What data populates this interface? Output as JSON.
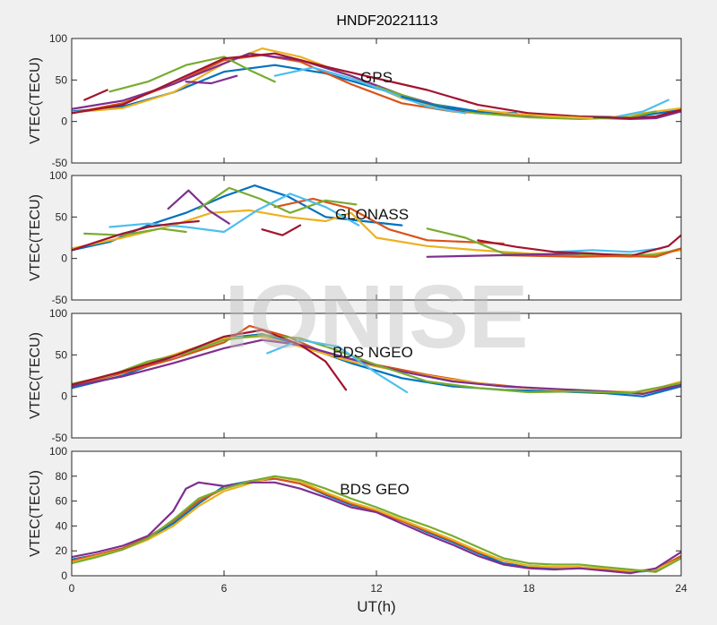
{
  "figure": {
    "title": "HNDF20221113",
    "watermark": "IONISE",
    "xlabel": "UT(h)",
    "background": "#f0f0f0",
    "axes_background": "#ffffff"
  },
  "palette": [
    "#0072BD",
    "#D95319",
    "#EDB120",
    "#7E2F8E",
    "#77AC30",
    "#4DBEEE",
    "#A2142F"
  ],
  "chart_data": [
    {
      "type": "line",
      "title": "GPS",
      "xlabel": "",
      "ylabel": "VTEC(TECU)",
      "xlim": [
        0,
        24
      ],
      "ylim": [
        -50,
        100
      ],
      "xticks": [
        0,
        6,
        12,
        18,
        24
      ],
      "yticks": [
        -50,
        0,
        50,
        100
      ],
      "grid": false,
      "series": [
        {
          "color": "#0072BD",
          "x": [
            0,
            2,
            4,
            6,
            8,
            10,
            12,
            14,
            16,
            18,
            20,
            22,
            24
          ],
          "y": [
            12,
            18,
            35,
            60,
            68,
            58,
            40,
            22,
            12,
            8,
            6,
            5,
            14
          ]
        },
        {
          "color": "#D95319",
          "x": [
            0,
            2,
            4,
            6,
            7.5,
            9,
            11,
            13,
            15,
            17,
            19,
            21,
            23,
            24
          ],
          "y": [
            10,
            22,
            45,
            74,
            80,
            72,
            45,
            22,
            12,
            8,
            5,
            4,
            5,
            14
          ]
        },
        {
          "color": "#EDB120",
          "x": [
            0,
            2,
            4,
            6,
            7.5,
            9,
            11,
            13,
            15,
            18,
            21,
            24
          ],
          "y": [
            11,
            16,
            35,
            70,
            88,
            78,
            55,
            28,
            12,
            6,
            4,
            16
          ]
        },
        {
          "color": "#7E2F8E",
          "x": [
            0,
            2,
            4,
            6,
            7,
            9,
            11,
            13,
            15,
            17,
            20,
            22,
            23,
            24
          ],
          "y": [
            15,
            25,
            45,
            70,
            82,
            74,
            55,
            32,
            14,
            8,
            5,
            3,
            4,
            12
          ]
        },
        {
          "color": "#77AC30",
          "x": [
            1.5,
            3,
            4.5,
            6,
            7,
            8
          ],
          "y": [
            36,
            48,
            68,
            78,
            62,
            48
          ]
        },
        {
          "color": "#77AC30",
          "x": [
            12,
            14,
            16,
            18,
            20,
            22,
            23
          ],
          "y": [
            42,
            22,
            10,
            5,
            3,
            5,
            12
          ]
        },
        {
          "color": "#4DBEEE",
          "x": [
            8,
            9.5,
            11,
            12.5,
            14,
            15.5
          ],
          "y": [
            55,
            65,
            52,
            35,
            18,
            10
          ]
        },
        {
          "color": "#4DBEEE",
          "x": [
            21.5,
            22.5,
            23.5
          ],
          "y": [
            6,
            12,
            26
          ]
        },
        {
          "color": "#A2142F",
          "x": [
            0,
            2,
            4,
            6,
            8,
            10,
            12,
            14,
            16,
            18,
            20,
            22,
            23,
            24
          ],
          "y": [
            10,
            20,
            48,
            76,
            82,
            66,
            52,
            38,
            20,
            10,
            6,
            4,
            6,
            14
          ]
        },
        {
          "color": "#A2142F",
          "x": [
            0.5,
            1.4
          ],
          "y": [
            26,
            38
          ]
        },
        {
          "color": "#0072BD",
          "x": [
            13,
            14.5,
            16,
            17.5
          ],
          "y": [
            30,
            18,
            12,
            10
          ]
        },
        {
          "color": "#7E2F8E",
          "x": [
            4.5,
            5.5,
            6.5
          ],
          "y": [
            48,
            46,
            55
          ]
        },
        {
          "color": "#EDB120",
          "x": [
            16,
            17.5,
            19,
            20.5
          ],
          "y": [
            14,
            9,
            6,
            4
          ]
        }
      ]
    },
    {
      "type": "line",
      "title": "GLONASS",
      "xlabel": "",
      "ylabel": "VTEC(TECU)",
      "xlim": [
        0,
        24
      ],
      "ylim": [
        -50,
        100
      ],
      "xticks": [
        0,
        6,
        12,
        18,
        24
      ],
      "yticks": [
        -50,
        0,
        50,
        100
      ],
      "grid": false,
      "series": [
        {
          "color": "#0072BD",
          "x": [
            0,
            1.5,
            3,
            4.5,
            6,
            7.2,
            8.5,
            10,
            11.5,
            13
          ],
          "y": [
            10,
            20,
            40,
            55,
            75,
            88,
            75,
            50,
            45,
            40
          ]
        },
        {
          "color": "#D95319",
          "x": [
            8,
            9.5,
            11,
            12.5,
            14,
            15.5,
            17
          ],
          "y": [
            62,
            72,
            60,
            35,
            22,
            20,
            18
          ]
        },
        {
          "color": "#EDB120",
          "x": [
            0,
            2,
            4,
            5.5,
            7,
            8.5,
            10,
            11,
            12,
            14,
            16,
            18,
            20,
            22,
            24
          ],
          "y": [
            12,
            25,
            40,
            55,
            58,
            50,
            45,
            55,
            25,
            15,
            10,
            6,
            4,
            2,
            10
          ]
        },
        {
          "color": "#7E2F8E",
          "x": [
            3.8,
            4.6,
            5.4,
            6.2
          ],
          "y": [
            60,
            82,
            58,
            42
          ]
        },
        {
          "color": "#77AC30",
          "x": [
            5,
            6.2,
            7.4,
            8.6,
            10,
            11.2
          ],
          "y": [
            60,
            85,
            72,
            55,
            70,
            65
          ]
        },
        {
          "color": "#77AC30",
          "x": [
            0.5,
            2,
            3.5,
            4.5
          ],
          "y": [
            30,
            28,
            36,
            32
          ]
        },
        {
          "color": "#77AC30",
          "x": [
            14,
            15.5,
            17,
            19,
            21,
            23,
            24
          ],
          "y": [
            36,
            25,
            6,
            4,
            5,
            4,
            12
          ]
        },
        {
          "color": "#4DBEEE",
          "x": [
            1.5,
            3,
            4.5,
            6,
            7.3,
            8.6,
            10,
            11.3
          ],
          "y": [
            38,
            42,
            38,
            32,
            58,
            78,
            62,
            40
          ]
        },
        {
          "color": "#4DBEEE",
          "x": [
            19,
            20.5,
            22,
            23.2
          ],
          "y": [
            8,
            10,
            8,
            12
          ]
        },
        {
          "color": "#A2142F",
          "x": [
            0,
            1,
            2,
            3,
            4,
            5
          ],
          "y": [
            10,
            20,
            30,
            38,
            42,
            45
          ]
        },
        {
          "color": "#A2142F",
          "x": [
            7.5,
            8.3,
            9
          ],
          "y": [
            35,
            28,
            40
          ]
        },
        {
          "color": "#A2142F",
          "x": [
            16,
            17.5,
            19,
            20.5,
            22,
            23.5,
            24
          ],
          "y": [
            22,
            14,
            8,
            6,
            3,
            15,
            28
          ]
        },
        {
          "color": "#D95319",
          "x": [
            17,
            18.5,
            20,
            21.5,
            23,
            24
          ],
          "y": [
            4,
            3,
            2,
            3,
            2,
            12
          ]
        },
        {
          "color": "#7E2F8E",
          "x": [
            14,
            15.5,
            17,
            18.5,
            20
          ],
          "y": [
            2,
            3,
            4,
            5,
            6
          ]
        }
      ]
    },
    {
      "type": "line",
      "title": "BDS NGEO",
      "xlabel": "",
      "ylabel": "VTEC(TECU)",
      "xlim": [
        0,
        24
      ],
      "ylim": [
        -50,
        100
      ],
      "xticks": [
        0,
        6,
        12,
        18,
        24
      ],
      "yticks": [
        -50,
        0,
        50,
        100
      ],
      "grid": false,
      "series": [
        {
          "color": "#0072BD",
          "x": [
            0,
            2,
            4,
            6,
            7.5,
            9,
            11,
            13,
            15,
            17,
            19,
            21,
            22.5,
            24
          ],
          "y": [
            10,
            25,
            48,
            70,
            75,
            62,
            40,
            22,
            12,
            8,
            6,
            4,
            0,
            12
          ]
        },
        {
          "color": "#D95319",
          "x": [
            0,
            2,
            4,
            6,
            7,
            8.5,
            10,
            12,
            14,
            16,
            18,
            20,
            22,
            24
          ],
          "y": [
            12,
            28,
            45,
            65,
            85,
            72,
            52,
            38,
            26,
            16,
            10,
            7,
            4,
            14
          ]
        },
        {
          "color": "#EDB120",
          "x": [
            0,
            2,
            4,
            6,
            7.5,
            9,
            11,
            13,
            15,
            17,
            19,
            21,
            22.5,
            24
          ],
          "y": [
            14,
            30,
            50,
            70,
            72,
            60,
            42,
            30,
            20,
            12,
            8,
            6,
            5,
            18
          ]
        },
        {
          "color": "#7E2F8E",
          "x": [
            0,
            2,
            4,
            6,
            7.5,
            9,
            11,
            13,
            15,
            17,
            19,
            21,
            22.5,
            24
          ],
          "y": [
            12,
            24,
            40,
            58,
            68,
            62,
            45,
            30,
            18,
            12,
            9,
            6,
            3,
            14
          ]
        },
        {
          "color": "#77AC30",
          "x": [
            0,
            1.5,
            3,
            4.5,
            6,
            7.5,
            9,
            10.5,
            12,
            14,
            16,
            18,
            20,
            22,
            24
          ],
          "y": [
            15,
            25,
            42,
            52,
            68,
            74,
            70,
            55,
            38,
            18,
            10,
            5,
            6,
            4,
            16
          ]
        },
        {
          "color": "#4DBEEE",
          "x": [
            7.7,
            9,
            10.5,
            12,
            13.2
          ],
          "y": [
            52,
            68,
            60,
            28,
            5
          ]
        },
        {
          "color": "#A2142F",
          "x": [
            0,
            2,
            4,
            6,
            7.5,
            9,
            10,
            10.8
          ],
          "y": [
            14,
            30,
            48,
            72,
            80,
            62,
            42,
            8
          ]
        }
      ]
    },
    {
      "type": "line",
      "title": "BDS GEO",
      "xlabel": "UT(h)",
      "ylabel": "VTEC(TECU)",
      "xlim": [
        0,
        24
      ],
      "ylim": [
        0,
        100
      ],
      "xticks": [
        0,
        6,
        12,
        18,
        24
      ],
      "yticks": [
        0,
        20,
        40,
        60,
        80,
        100
      ],
      "grid": false,
      "series": [
        {
          "color": "#0072BD",
          "x": [
            0,
            1,
            2,
            3,
            4,
            5,
            6,
            7,
            8,
            9,
            10,
            11,
            12,
            13,
            14,
            15,
            16,
            17,
            18,
            19,
            20,
            21,
            22,
            23,
            24
          ],
          "y": [
            13,
            17,
            22,
            30,
            42,
            58,
            72,
            76,
            78,
            74,
            65,
            57,
            52,
            44,
            35,
            27,
            18,
            10,
            7,
            6,
            6,
            5,
            3,
            4,
            15
          ]
        },
        {
          "color": "#D95319",
          "x": [
            0,
            1,
            2,
            3,
            4,
            5,
            6,
            7,
            8,
            9,
            10,
            11,
            12,
            13,
            14,
            15,
            16,
            17,
            18,
            19,
            20,
            21,
            22,
            23,
            24
          ],
          "y": [
            12,
            17,
            22,
            31,
            44,
            60,
            70,
            76,
            78,
            74,
            66,
            58,
            52,
            44,
            36,
            28,
            19,
            12,
            8,
            7,
            7,
            5,
            3,
            5,
            16
          ]
        },
        {
          "color": "#EDB120",
          "x": [
            0,
            1,
            2,
            3,
            4,
            5,
            6,
            7,
            8,
            9,
            10,
            11,
            12,
            13,
            14,
            15,
            16,
            17,
            18,
            19,
            20,
            21,
            22,
            23,
            24
          ],
          "y": [
            11,
            16,
            21,
            29,
            40,
            56,
            68,
            74,
            80,
            76,
            67,
            59,
            53,
            45,
            37,
            29,
            20,
            12,
            8,
            7,
            7,
            6,
            4,
            5,
            14
          ]
        },
        {
          "color": "#7E2F8E",
          "x": [
            0,
            1,
            2,
            3,
            4,
            4.5,
            5,
            6,
            7,
            8,
            9,
            10,
            11,
            12,
            13,
            14,
            15,
            16,
            17,
            18,
            19,
            20,
            21,
            22,
            23,
            24
          ],
          "y": [
            15,
            19,
            24,
            32,
            52,
            70,
            75,
            72,
            75,
            75,
            70,
            63,
            55,
            51,
            42,
            33,
            25,
            16,
            9,
            6,
            5,
            6,
            4,
            2,
            6,
            19
          ]
        },
        {
          "color": "#77AC30",
          "x": [
            0,
            1,
            2,
            3,
            4,
            5,
            6,
            7,
            8,
            9,
            10,
            11,
            12,
            13,
            14,
            15,
            16,
            17,
            18,
            19,
            20,
            21,
            22,
            23,
            24
          ],
          "y": [
            10,
            15,
            21,
            30,
            45,
            62,
            70,
            76,
            80,
            77,
            70,
            62,
            55,
            47,
            40,
            32,
            23,
            14,
            10,
            9,
            9,
            7,
            5,
            3,
            14
          ]
        }
      ]
    }
  ]
}
